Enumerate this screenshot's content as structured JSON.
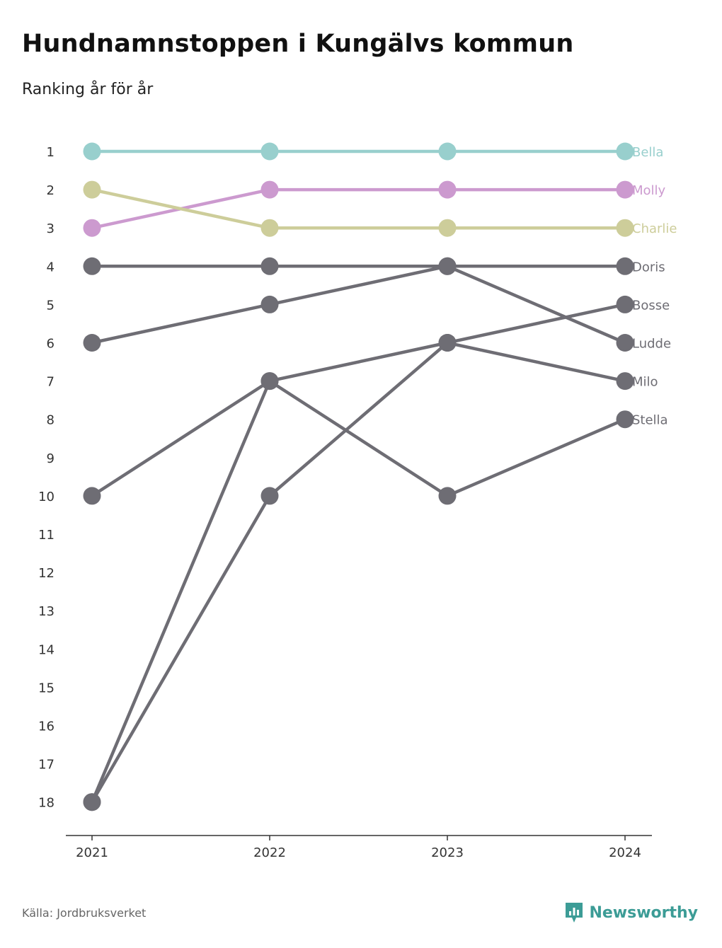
{
  "title": "Hundnamnstoppen i Kungälvs kommun",
  "subtitle": "Ranking år för år",
  "source": "Källa: Jordbruksverket",
  "brand": {
    "name": "Newsworthy",
    "icon": "newsworthy-logo-icon",
    "color": "#3c9c96"
  },
  "chart_data": {
    "type": "line",
    "chart_kind": "bump",
    "x": [
      "2021",
      "2022",
      "2023",
      "2024"
    ],
    "y_ticks": [
      1,
      2,
      3,
      4,
      5,
      6,
      7,
      8,
      9,
      10,
      11,
      12,
      13,
      14,
      15,
      16,
      17,
      18
    ],
    "ylim": [
      1,
      18
    ],
    "y_reversed": true,
    "grid": false,
    "legend": "direct labels at right end of lines",
    "series": [
      {
        "name": "Bella",
        "values": [
          1,
          1,
          1,
          1
        ],
        "color": "#98cfcd"
      },
      {
        "name": "Molly",
        "values": [
          3,
          2,
          2,
          2
        ],
        "color": "#cc9acf"
      },
      {
        "name": "Charlie",
        "values": [
          2,
          3,
          3,
          3
        ],
        "color": "#cdcd9a"
      },
      {
        "name": "Doris",
        "values": [
          4,
          4,
          4,
          4
        ],
        "color": "#6e6d74"
      },
      {
        "name": "Bosse",
        "values": [
          18,
          10,
          6,
          5
        ],
        "color": "#6e6d74"
      },
      {
        "name": "Ludde",
        "values": [
          6,
          5,
          4,
          6
        ],
        "color": "#6e6d74"
      },
      {
        "name": "Milo",
        "values": [
          10,
          7,
          6,
          7
        ],
        "color": "#6e6d74"
      },
      {
        "name": "Stella",
        "values": [
          18,
          7,
          10,
          8
        ],
        "color": "#6e6d74"
      }
    ]
  }
}
